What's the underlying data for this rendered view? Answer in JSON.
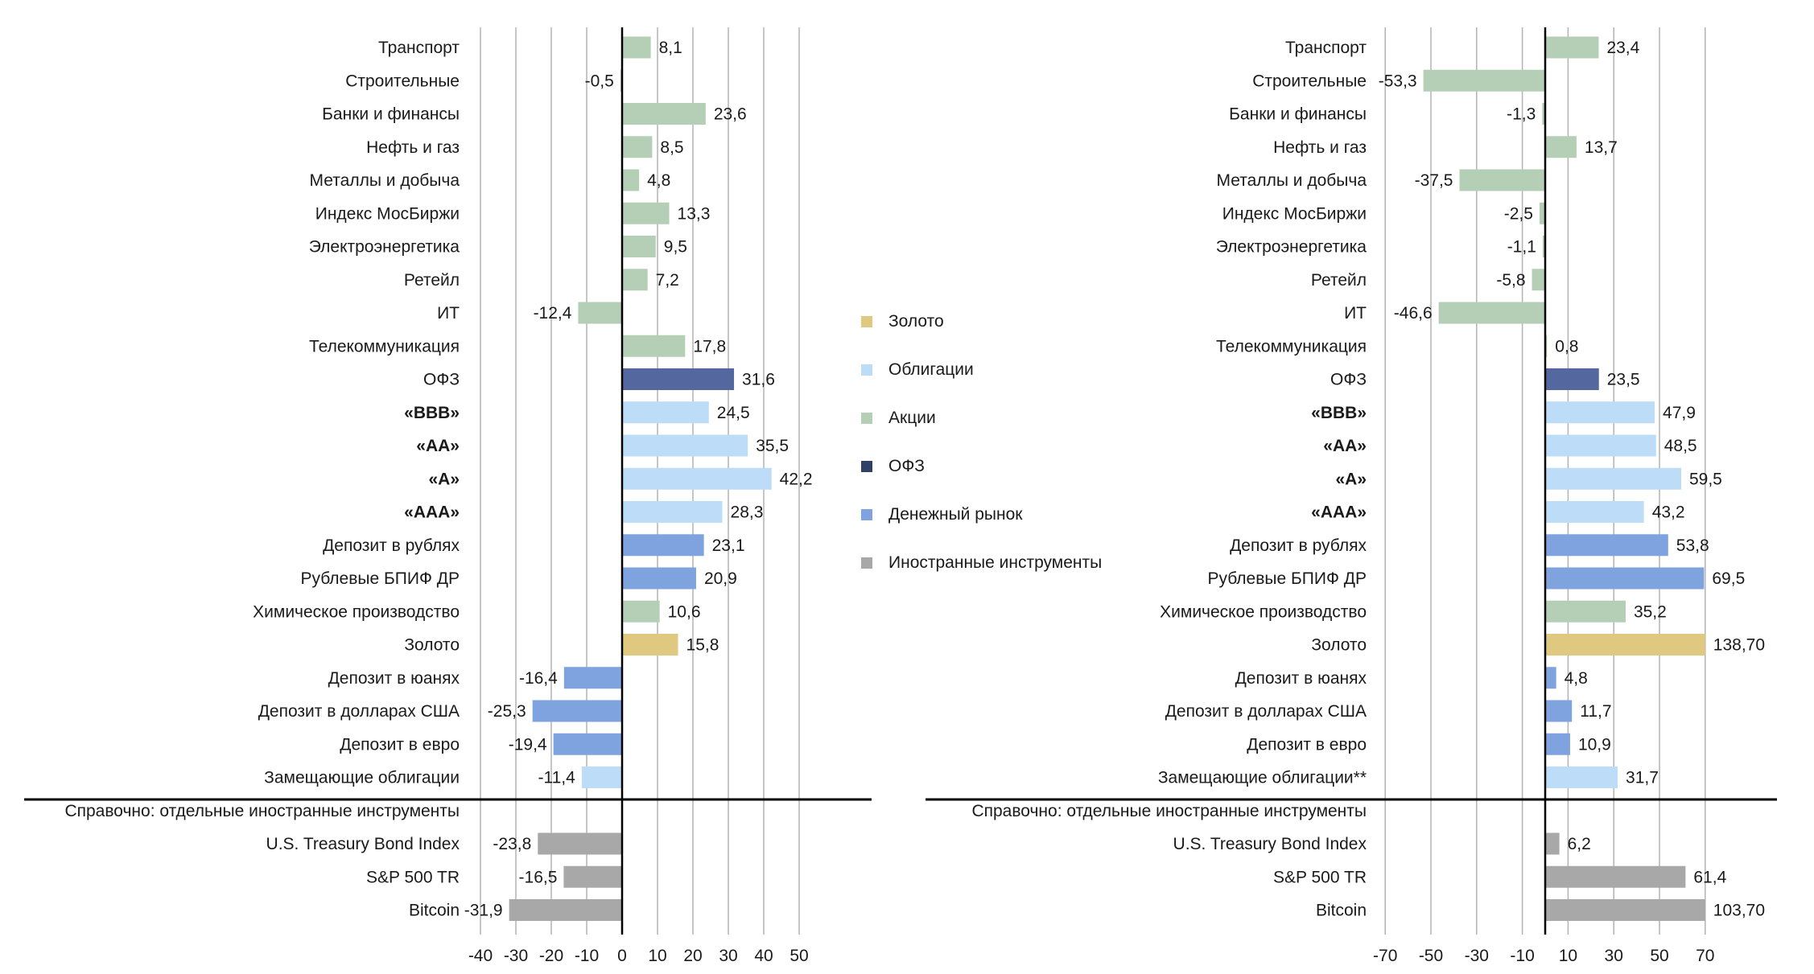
{
  "colors": {
    "gold": "#dfc981",
    "bonds": "#bcdcf7",
    "stocks": "#b5cfb6",
    "ofz": "#54679e",
    "money": "#7ea3df",
    "foreign": "#a8a8a8",
    "grid": "#b3b3b3",
    "axis": "#000000"
  },
  "legend": [
    {
      "key": "gold",
      "label": "Золото"
    },
    {
      "key": "bonds",
      "label": "Облигации"
    },
    {
      "key": "stocks",
      "label": "Акции"
    },
    {
      "key": "ofz",
      "label": "ОФЗ"
    },
    {
      "key": "money",
      "label": "Денежный рынок"
    },
    {
      "key": "foreign",
      "label": "Иностранные инструменты"
    }
  ],
  "chart_data": [
    {
      "type": "bar",
      "orientation": "horizontal",
      "xlim": [
        -40,
        50
      ],
      "xticks": [
        "-40",
        "-30",
        "-20",
        "-10",
        "0",
        "10",
        "20",
        "30",
        "40",
        "50"
      ],
      "separator_label": "Справочно: отдельные иностранные инструменты",
      "categories": [
        {
          "label": "Транспорт",
          "value": 8.1,
          "text": "8,1",
          "group": "stocks"
        },
        {
          "label": "Строительные",
          "value": -0.5,
          "text": "-0,5",
          "group": "stocks"
        },
        {
          "label": "Банки и финансы",
          "value": 23.6,
          "text": "23,6",
          "group": "stocks"
        },
        {
          "label": "Нефть и газ",
          "value": 8.5,
          "text": "8,5",
          "group": "stocks"
        },
        {
          "label": "Металлы и добыча",
          "value": 4.8,
          "text": "4,8",
          "group": "stocks"
        },
        {
          "label": "Индекс МосБиржи",
          "value": 13.3,
          "text": "13,3",
          "group": "stocks"
        },
        {
          "label": "Электроэнергетика",
          "value": 9.5,
          "text": "9,5",
          "group": "stocks"
        },
        {
          "label": "Ретейл",
          "value": 7.2,
          "text": "7,2",
          "group": "stocks"
        },
        {
          "label": "ИТ",
          "value": -12.4,
          "text": "-12,4",
          "group": "stocks"
        },
        {
          "label": "Телекоммуникация",
          "value": 17.8,
          "text": "17,8",
          "group": "stocks"
        },
        {
          "label": "ОФЗ",
          "value": 31.6,
          "text": "31,6",
          "group": "ofz"
        },
        {
          "label": "«BBB»",
          "value": 24.5,
          "text": "24,5",
          "group": "bonds",
          "bold": true
        },
        {
          "label": "«AA»",
          "value": 35.5,
          "text": "35,5",
          "group": "bonds",
          "bold": true
        },
        {
          "label": "«A»",
          "value": 42.2,
          "text": "42,2",
          "group": "bonds",
          "bold": true
        },
        {
          "label": "«AAA»",
          "value": 28.3,
          "text": "28,3",
          "group": "bonds",
          "bold": true
        },
        {
          "label": "Депозит в рублях",
          "value": 23.1,
          "text": "23,1",
          "group": "money"
        },
        {
          "label": "Рублевые БПИФ ДР",
          "value": 20.9,
          "text": "20,9",
          "group": "money"
        },
        {
          "label": "Химическое производство",
          "value": 10.6,
          "text": "10,6",
          "group": "stocks"
        },
        {
          "label": "Золото",
          "value": 15.8,
          "text": "15,8",
          "group": "gold"
        },
        {
          "label": "Депозит в юанях",
          "value": -16.4,
          "text": "-16,4",
          "group": "money"
        },
        {
          "label": "Депозит в долларах США",
          "value": -25.3,
          "text": "-25,3",
          "group": "money"
        },
        {
          "label": "Депозит в евро",
          "value": -19.4,
          "text": "-19,4",
          "group": "money"
        },
        {
          "label": "Замещающие облигации",
          "value": -11.4,
          "text": "-11,4",
          "group": "bonds"
        },
        {
          "label": "U.S. Treasury Bond Index",
          "value": -23.8,
          "text": "-23,8",
          "group": "foreign"
        },
        {
          "label": "S&P 500 TR",
          "value": -16.5,
          "text": "-16,5",
          "group": "foreign"
        },
        {
          "label": "Bitcoin",
          "value": -31.9,
          "text": "-31,9",
          "group": "foreign"
        }
      ]
    },
    {
      "type": "bar",
      "orientation": "horizontal",
      "xlim": [
        -70,
        70
      ],
      "xticks": [
        "-70",
        "-50",
        "-30",
        "-10",
        "10",
        "30",
        "50",
        "70"
      ],
      "separator_label": "Справочно: отдельные иностранные инструменты",
      "categories": [
        {
          "label": "Транспорт",
          "value": 23.4,
          "text": "23,4",
          "group": "stocks"
        },
        {
          "label": "Строительные",
          "value": -53.3,
          "text": "-53,3",
          "group": "stocks"
        },
        {
          "label": "Банки и финансы",
          "value": -1.3,
          "text": "-1,3",
          "group": "stocks"
        },
        {
          "label": "Нефть и газ",
          "value": 13.7,
          "text": "13,7",
          "group": "stocks"
        },
        {
          "label": "Металлы и добыча",
          "value": -37.5,
          "text": "-37,5",
          "group": "stocks"
        },
        {
          "label": "Индекс МосБиржи",
          "value": -2.5,
          "text": "-2,5",
          "group": "stocks"
        },
        {
          "label": "Электроэнергетика",
          "value": -1.1,
          "text": "-1,1",
          "group": "stocks"
        },
        {
          "label": "Ретейл",
          "value": -5.8,
          "text": "-5,8",
          "group": "stocks"
        },
        {
          "label": "ИТ",
          "value": -46.6,
          "text": "-46,6",
          "group": "stocks"
        },
        {
          "label": "Телекоммуникация",
          "value": 0.8,
          "text": "0,8",
          "group": "stocks"
        },
        {
          "label": "ОФЗ",
          "value": 23.5,
          "text": "23,5",
          "group": "ofz"
        },
        {
          "label": "«BBB»",
          "value": 47.9,
          "text": "47,9",
          "group": "bonds",
          "bold": true
        },
        {
          "label": "«AA»",
          "value": 48.5,
          "text": "48,5",
          "group": "bonds",
          "bold": true
        },
        {
          "label": "«A»",
          "value": 59.5,
          "text": "59,5",
          "group": "bonds",
          "bold": true
        },
        {
          "label": "«AAA»",
          "value": 43.2,
          "text": "43,2",
          "group": "bonds",
          "bold": true
        },
        {
          "label": "Депозит в рублях",
          "value": 53.8,
          "text": "53,8",
          "group": "money"
        },
        {
          "label": "Рублевые БПИФ ДР",
          "value": 69.5,
          "text": "69,5",
          "group": "money"
        },
        {
          "label": "Химическое производство",
          "value": 35.2,
          "text": "35,2",
          "group": "stocks"
        },
        {
          "label": "Золото",
          "value": 138.7,
          "text": "138,70",
          "group": "gold"
        },
        {
          "label": "Депозит в юанях",
          "value": 4.8,
          "text": "4,8",
          "group": "money"
        },
        {
          "label": "Депозит в долларах США",
          "value": 11.7,
          "text": "11,7",
          "group": "money"
        },
        {
          "label": "Депозит в евро",
          "value": 10.9,
          "text": "10,9",
          "group": "money"
        },
        {
          "label": "Замещающие облигации**",
          "value": 31.7,
          "text": "31,7",
          "group": "bonds"
        },
        {
          "label": "U.S. Treasury Bond Index",
          "value": 6.2,
          "text": "6,2",
          "group": "foreign"
        },
        {
          "label": "S&P 500 TR",
          "value": 61.4,
          "text": "61,4",
          "group": "foreign"
        },
        {
          "label": "Bitcoin",
          "value": 103.7,
          "text": "103,70",
          "group": "foreign"
        }
      ]
    }
  ]
}
